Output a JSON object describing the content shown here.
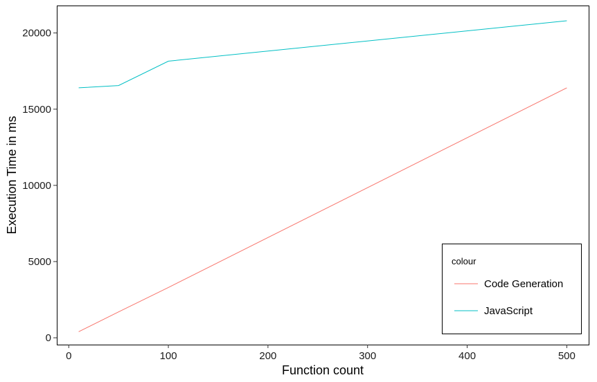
{
  "chart_data": {
    "type": "line",
    "xlabel": "Function count",
    "ylabel": "Execution Time in ms",
    "xlim": [
      -12,
      522
    ],
    "ylim": [
      -450,
      21800
    ],
    "xticks": [
      0,
      100,
      200,
      300,
      400,
      500
    ],
    "yticks": [
      0,
      5000,
      10000,
      15000,
      20000
    ],
    "grid": false,
    "legend_placement": "bottom-right",
    "legend": {
      "title": "colour",
      "entries": [
        "Code Generation",
        "JavaScript"
      ]
    },
    "series": [
      {
        "name": "Code Generation",
        "color": "#F8766D",
        "x": [
          10,
          50,
          100,
          500
        ],
        "y": [
          400,
          1700,
          3300,
          16400
        ]
      },
      {
        "name": "JavaScript",
        "color": "#00BFC4",
        "x": [
          10,
          50,
          100,
          500
        ],
        "y": [
          16400,
          16550,
          18150,
          20800
        ]
      }
    ]
  }
}
